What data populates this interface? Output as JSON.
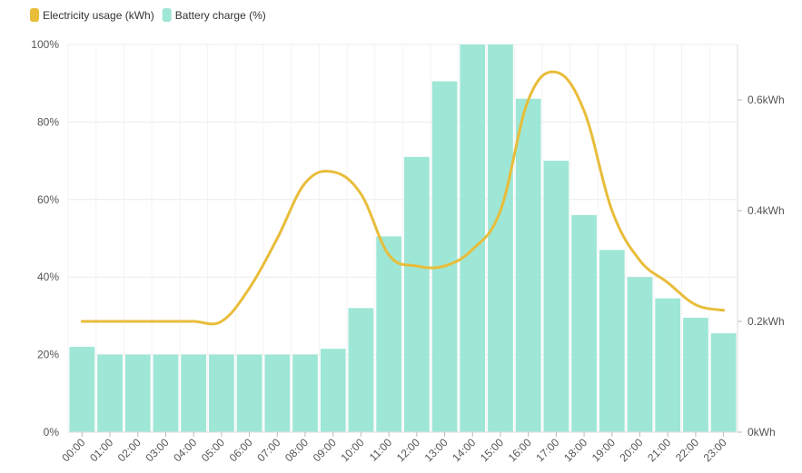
{
  "chart_data": {
    "type": "bar",
    "categories": [
      "00:00",
      "01:00",
      "02:00",
      "03:00",
      "04:00",
      "05:00",
      "06:00",
      "07:00",
      "08:00",
      "09:00",
      "10:00",
      "11:00",
      "12:00",
      "13:00",
      "14:00",
      "15:00",
      "16:00",
      "17:00",
      "18:00",
      "19:00",
      "20:00",
      "21:00",
      "22:00",
      "23:00"
    ],
    "series": [
      {
        "name": "Electricity usage (kWh)",
        "type": "line",
        "axis": "right",
        "color": "#e8bd3a",
        "values": [
          0.2,
          0.2,
          0.2,
          0.2,
          0.2,
          0.2,
          0.26,
          0.35,
          0.45,
          0.47,
          0.43,
          0.32,
          0.3,
          0.3,
          0.33,
          0.4,
          0.6,
          0.65,
          0.58,
          0.4,
          0.31,
          0.27,
          0.23,
          0.22
        ]
      },
      {
        "name": "Battery charge (%)",
        "type": "bar",
        "axis": "left",
        "color": "#9ee6d6",
        "values": [
          22,
          20,
          20,
          20,
          20,
          20,
          20,
          20,
          20,
          21.5,
          32,
          50.5,
          71,
          90.5,
          100,
          100,
          86,
          70,
          56,
          47,
          40,
          34.5,
          29.5,
          25.5
        ]
      }
    ],
    "y_left": {
      "ylim": [
        0,
        100
      ],
      "ticks": [
        "0%",
        "20%",
        "40%",
        "60%",
        "80%",
        "100%"
      ]
    },
    "y_right": {
      "ylim": [
        0,
        0.7
      ],
      "ticks": [
        "0kWh",
        "0.2kWh",
        "0.4kWh",
        "0.6kWh"
      ],
      "tick_values": [
        0,
        0.2,
        0.4,
        0.6
      ]
    },
    "legend": {
      "position": "top-left"
    },
    "grid": true
  }
}
